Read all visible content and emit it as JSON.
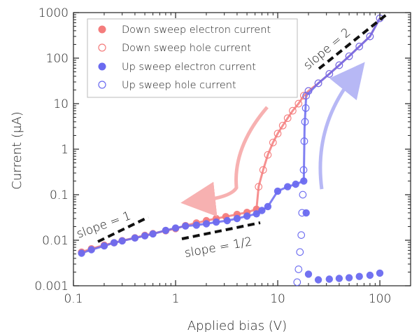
{
  "chart_data": {
    "type": "scatter",
    "xscale": "log",
    "yscale": "log",
    "xlim": [
      0.1,
      200
    ],
    "ylim": [
      0.001,
      1000
    ],
    "xlabel": "Applied bias (V)",
    "ylabel": "Current (μA)",
    "xticks": [
      {
        "v": 0.1,
        "label": "0.1"
      },
      {
        "v": 1,
        "label": "1"
      },
      {
        "v": 10,
        "label": "10"
      },
      {
        "v": 100,
        "label": "100"
      }
    ],
    "yticks": [
      {
        "v": 0.001,
        "label": "0.001"
      },
      {
        "v": 0.01,
        "label": "0.01"
      },
      {
        "v": 0.1,
        "label": "0.1"
      },
      {
        "v": 1,
        "label": "1"
      },
      {
        "v": 10,
        "label": "10"
      },
      {
        "v": 100,
        "label": "100"
      },
      {
        "v": 1000,
        "label": "1000"
      }
    ],
    "legend_position": "top-left",
    "series": [
      {
        "name": "Down sweep electron current",
        "color": "#f47c7c",
        "marker": "filled-circle",
        "x": [
          0.12,
          0.15,
          0.2,
          0.25,
          0.3,
          0.4,
          0.5,
          0.6,
          0.8,
          1.0,
          1.25,
          1.6,
          2.0,
          2.5,
          3.1,
          4.0,
          5.0,
          6.2
        ],
        "y": [
          0.0055,
          0.0065,
          0.0078,
          0.0088,
          0.0098,
          0.0113,
          0.0128,
          0.014,
          0.0162,
          0.018,
          0.021,
          0.024,
          0.027,
          0.03,
          0.033,
          0.037,
          0.041,
          0.048
        ]
      },
      {
        "name": "Down sweep hole current",
        "color": "#f47c7c",
        "marker": "open-circle",
        "x": [
          6.5,
          7.2,
          8.0,
          9.0,
          10.0,
          11.2,
          12.5,
          14.0,
          16.0,
          18.0,
          20.0,
          25.0,
          32.0,
          40.0,
          50.0,
          63.0,
          80.0,
          100.0
        ],
        "y": [
          0.15,
          0.35,
          0.75,
          1.4,
          2.2,
          3.3,
          4.8,
          7.0,
          10.0,
          15.0,
          19.0,
          28.0,
          45.0,
          70.0,
          110.0,
          180.0,
          300.0,
          750.0
        ]
      },
      {
        "name": "Up sweep electron current",
        "color": "#6a6af0",
        "marker": "filled-circle",
        "x": [
          0.12,
          0.15,
          0.2,
          0.25,
          0.3,
          0.4,
          0.5,
          0.6,
          0.8,
          1.0,
          1.25,
          1.6,
          2.0,
          2.5,
          3.2,
          4.0,
          5.0,
          6.2,
          7.0,
          8.0,
          10.0,
          12.5,
          15.0,
          18.0,
          19.0,
          20.0,
          25.0,
          32.0,
          40.0,
          50.0,
          63.0,
          80.0,
          100.0
        ],
        "y": [
          0.0052,
          0.0062,
          0.0075,
          0.0088,
          0.0097,
          0.0112,
          0.0125,
          0.0138,
          0.0165,
          0.0185,
          0.0205,
          0.0215,
          0.023,
          0.025,
          0.027,
          0.03,
          0.034,
          0.038,
          0.045,
          0.055,
          0.12,
          0.15,
          0.17,
          0.2,
          0.04,
          0.0018,
          0.00135,
          0.0014,
          0.00145,
          0.0015,
          0.0016,
          0.0017,
          0.0019
        ]
      },
      {
        "name": "Up sweep hole current",
        "color": "#6a6af0",
        "marker": "open-circle",
        "x": [
          15.5,
          16.0,
          16.5,
          17.0,
          17.3,
          17.6,
          17.9,
          18.2,
          18.5,
          18.8,
          19.0,
          20.0,
          25.0,
          32.0,
          40.0,
          50.0,
          63.0,
          80.0,
          100.0
        ],
        "y": [
          0.0012,
          0.0023,
          0.0055,
          0.013,
          0.04,
          0.1,
          0.35,
          1.5,
          4.0,
          8.0,
          15.0,
          19.0,
          28.0,
          45.0,
          70.0,
          110.0,
          180.0,
          300.0,
          750.0
        ]
      }
    ],
    "annotations": [
      {
        "text": "slope = 1",
        "x": 0.15,
        "y": 0.012
      },
      {
        "text": "slope = 1/2",
        "x": 1.2,
        "y": 0.004
      },
      {
        "text": "slope = 2",
        "x": 40,
        "y": 200
      }
    ]
  }
}
